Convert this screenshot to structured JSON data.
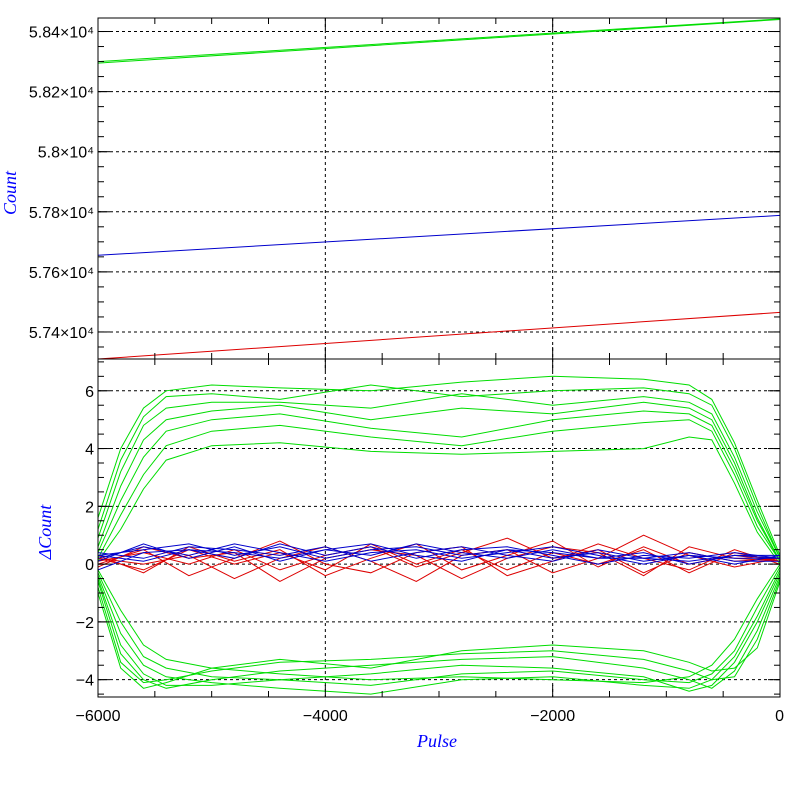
{
  "chart_data": [
    {
      "type": "line",
      "panel": "top",
      "ylabel": "Count",
      "xlim": [
        -6000,
        0
      ],
      "ylim": [
        57310,
        58445
      ],
      "y_ticks": [
        {
          "value": 57400,
          "label": "5.74×10⁴"
        },
        {
          "value": 57600,
          "label": "5.76×10⁴"
        },
        {
          "value": 57800,
          "label": "5.78×10⁴"
        },
        {
          "value": 58000,
          "label": "5.8×10⁴"
        },
        {
          "value": 58200,
          "label": "5.82×10⁴"
        },
        {
          "value": 58400,
          "label": "5.84×10⁴"
        }
      ],
      "y_minor_step": 50,
      "grid": true,
      "series": [
        {
          "color": "#00dd00",
          "x": [
            -6000,
            0
          ],
          "y": [
            58295,
            58440
          ]
        },
        {
          "color": "#00dd00",
          "x": [
            -6000,
            0
          ],
          "y": [
            58300,
            58442
          ]
        },
        {
          "color": "#0000cc",
          "x": [
            -6000,
            0
          ],
          "y": [
            57655,
            57788
          ]
        },
        {
          "color": "#dd0000",
          "x": [
            -6000,
            0
          ],
          "y": [
            57310,
            57465
          ]
        }
      ]
    },
    {
      "type": "line",
      "panel": "bottom",
      "xlabel": "Pulse",
      "ylabel": "ΔCount",
      "xlim": [
        -6000,
        0
      ],
      "ylim": [
        -4.6,
        7.1
      ],
      "x_ticks": [
        {
          "value": -6000,
          "label": "−6000"
        },
        {
          "value": -4000,
          "label": "−4000"
        },
        {
          "value": -2000,
          "label": "−2000"
        },
        {
          "value": 0,
          "label": "0"
        }
      ],
      "y_ticks": [
        {
          "value": -4,
          "label": "−4"
        },
        {
          "value": -2,
          "label": "−2"
        },
        {
          "value": 0,
          "label": "0"
        },
        {
          "value": 2,
          "label": "2"
        },
        {
          "value": 4,
          "label": "4"
        },
        {
          "value": 6,
          "label": "6"
        }
      ],
      "x_minor_step": 500,
      "y_minor_step": 0.5,
      "grid": true,
      "series": [
        {
          "color": "#00dd00",
          "x": [
            -6000,
            -5800,
            -5600,
            -5400,
            -5000,
            -4400,
            -3600,
            -2800,
            -2000,
            -1200,
            -800,
            -600,
            -400,
            -200,
            0
          ],
          "y": [
            1.6,
            4.0,
            5.4,
            6.0,
            6.2,
            6.1,
            6.0,
            6.3,
            6.5,
            6.4,
            6.2,
            5.7,
            4.2,
            2.2,
            0.3
          ]
        },
        {
          "color": "#00dd00",
          "x": [
            -6000,
            -5800,
            -5600,
            -5400,
            -5000,
            -4400,
            -3600,
            -2800,
            -2000,
            -1200,
            -800,
            -600,
            -400,
            -200,
            0
          ],
          "y": [
            1.2,
            3.6,
            5.1,
            5.8,
            5.9,
            5.7,
            6.2,
            5.8,
            6.0,
            6.1,
            5.9,
            5.5,
            4.0,
            2.0,
            0.2
          ]
        },
        {
          "color": "#00dd00",
          "x": [
            -6000,
            -5800,
            -5600,
            -5400,
            -5000,
            -4400,
            -3600,
            -2800,
            -2000,
            -1200,
            -800,
            -600,
            -400,
            -200,
            0
          ],
          "y": [
            0.9,
            3.2,
            4.8,
            5.4,
            5.6,
            5.6,
            5.4,
            5.9,
            5.5,
            5.8,
            5.6,
            5.2,
            3.7,
            1.8,
            0.2
          ]
        },
        {
          "color": "#00dd00",
          "x": [
            -6000,
            -5800,
            -5600,
            -5400,
            -5000,
            -4400,
            -3600,
            -2800,
            -2000,
            -1200,
            -800,
            -600,
            -400,
            -200,
            0
          ],
          "y": [
            0.6,
            2.7,
            4.3,
            5.0,
            5.3,
            5.5,
            5.0,
            5.4,
            5.2,
            5.6,
            5.4,
            5.0,
            3.5,
            1.6,
            0.1
          ]
        },
        {
          "color": "#00dd00",
          "x": [
            -6000,
            -5800,
            -5600,
            -5400,
            -5000,
            -4400,
            -3600,
            -2800,
            -2000,
            -1200,
            -800,
            -600,
            -400,
            -200,
            0
          ],
          "y": [
            0.4,
            2.2,
            3.7,
            4.6,
            5.0,
            5.2,
            4.7,
            4.4,
            5.0,
            5.3,
            5.2,
            4.8,
            3.3,
            1.5,
            0.1
          ]
        },
        {
          "color": "#00dd00",
          "x": [
            -6000,
            -5800,
            -5600,
            -5400,
            -5000,
            -4400,
            -3600,
            -2800,
            -2000,
            -1200,
            -800,
            -600,
            -400,
            -200,
            0
          ],
          "y": [
            0.2,
            1.7,
            3.1,
            4.1,
            4.6,
            4.8,
            4.4,
            4.1,
            4.6,
            4.9,
            5.0,
            4.6,
            3.1,
            1.3,
            0.1
          ]
        },
        {
          "color": "#00dd00",
          "x": [
            -6000,
            -5800,
            -5600,
            -5400,
            -5000,
            -4400,
            -3600,
            -2800,
            -2000,
            -1200,
            -800,
            -600,
            -400,
            -200,
            0
          ],
          "y": [
            0.1,
            1.2,
            2.6,
            3.6,
            4.1,
            4.2,
            3.9,
            3.8,
            3.9,
            4.0,
            4.4,
            4.3,
            2.8,
            1.1,
            0.0
          ]
        },
        {
          "color": "#00dd00",
          "x": [
            -6000,
            -5800,
            -5600,
            -5400,
            -5000,
            -4400,
            -3600,
            -2800,
            -2000,
            -1200,
            -800,
            -600,
            -400,
            -200,
            0
          ],
          "y": [
            -0.2,
            -1.6,
            -2.8,
            -3.3,
            -3.6,
            -3.8,
            -4.0,
            -3.9,
            -4.0,
            -4.1,
            -3.9,
            -3.5,
            -2.6,
            -1.2,
            0.0
          ]
        },
        {
          "color": "#00dd00",
          "x": [
            -6000,
            -5800,
            -5600,
            -5400,
            -5000,
            -4400,
            -3600,
            -2800,
            -2000,
            -1200,
            -800,
            -600,
            -400,
            -200,
            0
          ],
          "y": [
            -0.3,
            -2.0,
            -3.2,
            -3.6,
            -3.9,
            -4.0,
            -4.2,
            -3.8,
            -3.7,
            -4.0,
            -4.1,
            -3.8,
            -3.0,
            -1.5,
            -0.1
          ]
        },
        {
          "color": "#00dd00",
          "x": [
            -6000,
            -5800,
            -5600,
            -5400,
            -5000,
            -4400,
            -3600,
            -2800,
            -2000,
            -1200,
            -800,
            -600,
            -400,
            -200,
            0
          ],
          "y": [
            -0.4,
            -2.4,
            -3.5,
            -3.9,
            -4.1,
            -4.3,
            -4.5,
            -4.0,
            -3.9,
            -4.2,
            -4.3,
            -4.0,
            -3.2,
            -1.8,
            -0.2
          ]
        },
        {
          "color": "#00dd00",
          "x": [
            -6000,
            -5800,
            -5600,
            -5400,
            -5000,
            -4400,
            -3600,
            -2800,
            -2000,
            -1200,
            -800,
            -600,
            -400,
            -200,
            0
          ],
          "y": [
            -0.5,
            -2.8,
            -3.8,
            -4.2,
            -4.2,
            -4.0,
            -3.8,
            -3.5,
            -3.6,
            -3.9,
            -4.4,
            -4.2,
            -3.4,
            -2.0,
            -0.3
          ]
        },
        {
          "color": "#00dd00",
          "x": [
            -6000,
            -5800,
            -5600,
            -5400,
            -5000,
            -4400,
            -3600,
            -2800,
            -2000,
            -1200,
            -800,
            -600,
            -400,
            -200,
            0
          ],
          "y": [
            -0.6,
            -3.1,
            -4.0,
            -4.3,
            -4.0,
            -3.7,
            -3.5,
            -3.3,
            -3.2,
            -3.6,
            -4.0,
            -4.3,
            -3.7,
            -2.3,
            -0.4
          ]
        },
        {
          "color": "#00dd00",
          "x": [
            -6000,
            -5800,
            -5600,
            -5400,
            -5000,
            -4400,
            -3600,
            -2800,
            -2000,
            -1200,
            -800,
            -600,
            -400,
            -200,
            0
          ],
          "y": [
            -0.8,
            -3.4,
            -4.1,
            -4.0,
            -3.7,
            -3.4,
            -3.3,
            -3.1,
            -3.0,
            -3.3,
            -3.7,
            -4.0,
            -3.9,
            -2.6,
            -0.5
          ]
        },
        {
          "color": "#00dd00",
          "x": [
            -6000,
            -5800,
            -5600,
            -5400,
            -5000,
            -4400,
            -3600,
            -2800,
            -2000,
            -1200,
            -800,
            -600,
            -400,
            -200,
            0
          ],
          "y": [
            -1.0,
            -3.6,
            -4.3,
            -4.1,
            -3.6,
            -3.3,
            -3.6,
            -3.0,
            -2.8,
            -3.0,
            -3.4,
            -3.7,
            -3.6,
            -2.9,
            -0.6
          ]
        },
        {
          "color": "#dd0000",
          "x": [
            -6000,
            -5600,
            -5200,
            -4800,
            -4400,
            -4000,
            -3600,
            -3200,
            -2800,
            -2400,
            -2000,
            -1600,
            -1200,
            -800,
            -400,
            0
          ],
          "y": [
            0.1,
            0.4,
            0.0,
            0.5,
            -0.2,
            0.3,
            0.6,
            -0.1,
            0.4,
            0.9,
            0.2,
            0.5,
            -0.3,
            0.4,
            0.1,
            0.2
          ]
        },
        {
          "color": "#dd0000",
          "x": [
            -6000,
            -5600,
            -5200,
            -4800,
            -4400,
            -4000,
            -3600,
            -3200,
            -2800,
            -2400,
            -2000,
            -1600,
            -1200,
            -800,
            -400,
            0
          ],
          "y": [
            0.3,
            -0.3,
            0.6,
            0.1,
            0.5,
            -0.4,
            0.2,
            0.7,
            -0.2,
            0.3,
            0.8,
            -0.1,
            0.6,
            0.0,
            0.3,
            0.1
          ]
        },
        {
          "color": "#dd0000",
          "x": [
            -6000,
            -5600,
            -5200,
            -4800,
            -4400,
            -4000,
            -3600,
            -3200,
            -2800,
            -2400,
            -2000,
            -1600,
            -1200,
            -800,
            -400,
            0
          ],
          "y": [
            0.0,
            0.5,
            -0.4,
            0.2,
            0.8,
            0.0,
            -0.3,
            0.4,
            0.6,
            -0.4,
            0.1,
            0.7,
            0.2,
            -0.2,
            0.5,
            0.0
          ]
        },
        {
          "color": "#dd0000",
          "x": [
            -6000,
            -5600,
            -5200,
            -4800,
            -4400,
            -4000,
            -3600,
            -3200,
            -2800,
            -2400,
            -2000,
            -1600,
            -1200,
            -800,
            -400,
            0
          ],
          "y": [
            0.2,
            0.0,
            0.3,
            -0.5,
            0.2,
            0.6,
            0.1,
            -0.6,
            0.3,
            0.5,
            -0.3,
            0.2,
            1.0,
            0.3,
            -0.1,
            0.2
          ]
        },
        {
          "color": "#dd0000",
          "x": [
            -6000,
            -5600,
            -5200,
            -4800,
            -4400,
            -4000,
            -3600,
            -3200,
            -2800,
            -2400,
            -2000,
            -1600,
            -1200,
            -800,
            -400,
            0
          ],
          "y": [
            -0.1,
            0.6,
            0.2,
            0.4,
            -0.6,
            0.2,
            0.5,
            0.3,
            -0.5,
            0.2,
            0.6,
            0.4,
            -0.4,
            0.6,
            0.2,
            0.1
          ]
        },
        {
          "color": "#dd0000",
          "x": [
            -6000,
            -5600,
            -5200,
            -4800,
            -4400,
            -4000,
            -3600,
            -3200,
            -2800,
            -2400,
            -2000,
            -1600,
            -1200,
            -800,
            -400,
            0
          ],
          "y": [
            0.2,
            -0.2,
            0.5,
            0.0,
            0.4,
            -0.2,
            0.7,
            0.0,
            0.5,
            -0.2,
            0.4,
            0.0,
            0.5,
            -0.3,
            0.4,
            0.1
          ]
        },
        {
          "color": "#0000cc",
          "x": [
            -6000,
            -5600,
            -5200,
            -4800,
            -4400,
            -4000,
            -3600,
            -3200,
            -2800,
            -2400,
            -2000,
            -1600,
            -1200,
            -800,
            -400,
            0
          ],
          "y": [
            0.3,
            0.5,
            0.7,
            0.3,
            0.6,
            0.2,
            0.5,
            0.6,
            0.3,
            0.5,
            0.2,
            0.4,
            0.1,
            0.3,
            0.2,
            0.2
          ]
        },
        {
          "color": "#0000cc",
          "x": [
            -6000,
            -5600,
            -5200,
            -4800,
            -4400,
            -4000,
            -3600,
            -3200,
            -2800,
            -2400,
            -2000,
            -1600,
            -1200,
            -800,
            -400,
            0
          ],
          "y": [
            0.1,
            0.7,
            0.2,
            0.6,
            0.1,
            0.5,
            0.3,
            0.7,
            0.4,
            0.2,
            0.5,
            0.2,
            0.4,
            0.0,
            0.3,
            0.3
          ]
        },
        {
          "color": "#0000cc",
          "x": [
            -6000,
            -5600,
            -5200,
            -4800,
            -4400,
            -4000,
            -3600,
            -3200,
            -2800,
            -2400,
            -2000,
            -1600,
            -1200,
            -800,
            -400,
            0
          ],
          "y": [
            0.4,
            0.2,
            0.6,
            0.5,
            0.3,
            0.6,
            0.1,
            0.4,
            0.6,
            0.3,
            0.1,
            0.5,
            0.2,
            0.4,
            0.1,
            0.1
          ]
        },
        {
          "color": "#0000cc",
          "x": [
            -6000,
            -5600,
            -5200,
            -4800,
            -4400,
            -4000,
            -3600,
            -3200,
            -2800,
            -2400,
            -2000,
            -1600,
            -1200,
            -800,
            -400,
            0
          ],
          "y": [
            -0.2,
            0.4,
            0.5,
            0.2,
            0.7,
            0.3,
            0.6,
            0.2,
            0.5,
            0.6,
            0.3,
            0.0,
            0.3,
            0.2,
            0.4,
            0.2
          ]
        },
        {
          "color": "#0000cc",
          "x": [
            -6000,
            -5600,
            -5200,
            -4800,
            -4400,
            -4000,
            -3600,
            -3200,
            -2800,
            -2400,
            -2000,
            -1600,
            -1200,
            -800,
            -400,
            0
          ],
          "y": [
            0.2,
            0.6,
            0.3,
            0.7,
            0.4,
            0.1,
            0.4,
            0.5,
            0.2,
            0.4,
            0.6,
            0.3,
            0.0,
            0.3,
            0.0,
            0.3
          ]
        },
        {
          "color": "#0000cc",
          "x": [
            -6000,
            -5600,
            -5200,
            -4800,
            -4400,
            -4000,
            -3600,
            -3200,
            -2800,
            -2400,
            -2000,
            -1600,
            -1200,
            -800,
            -400,
            0
          ],
          "y": [
            0.3,
            0.1,
            0.5,
            0.4,
            0.2,
            0.5,
            0.7,
            0.3,
            0.1,
            0.5,
            0.4,
            0.2,
            0.2,
            0.1,
            0.3,
            0.2
          ]
        }
      ]
    }
  ]
}
